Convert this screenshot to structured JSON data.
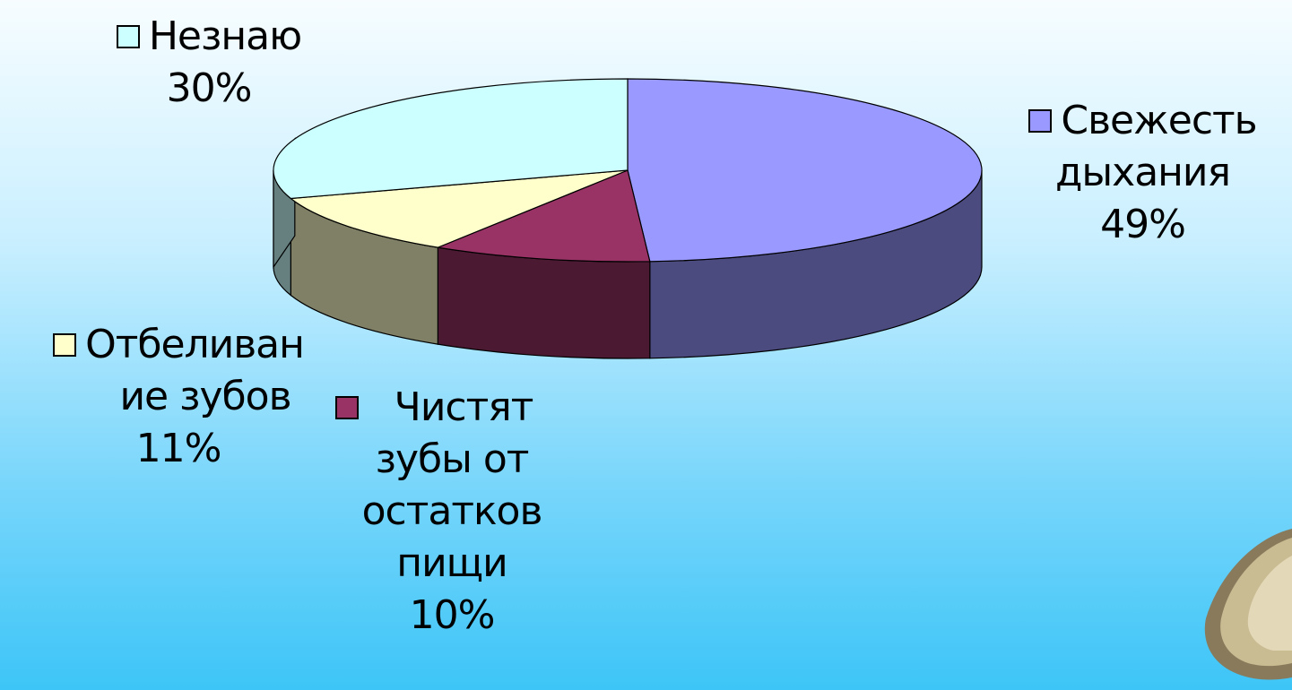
{
  "chart_data": {
    "type": "pie",
    "style": "3d",
    "title": "",
    "slices": [
      {
        "name": "Свежесть дыхания",
        "value": 49,
        "value_label": "49%",
        "color": "#9999ff",
        "side_color": "#4b4b80"
      },
      {
        "name": "Чистят зубы от остатков пищи",
        "value": 10,
        "value_label": "10%",
        "color": "#993366",
        "side_color": "#4c1933"
      },
      {
        "name": "Отбеливание зубов",
        "value": 11,
        "value_label": "11%",
        "color": "#ffffcc",
        "side_color": "#808066"
      },
      {
        "name": "Незнаю",
        "value": 30,
        "value_label": "30%",
        "color": "#ccffff",
        "side_color": "#668080"
      }
    ]
  },
  "labels": {
    "breath": {
      "lines": [
        "Свежесть",
        "дыхания",
        "49%"
      ]
    },
    "clean": {
      "lines": [
        "Чистят",
        "зубы от",
        "остатков",
        "пищи",
        "10%"
      ]
    },
    "whiten": {
      "lines": [
        "Отбеливан",
        "ие зубов",
        "11%"
      ]
    },
    "unknown": {
      "lines": [
        "Незнаю",
        "30%"
      ]
    }
  }
}
